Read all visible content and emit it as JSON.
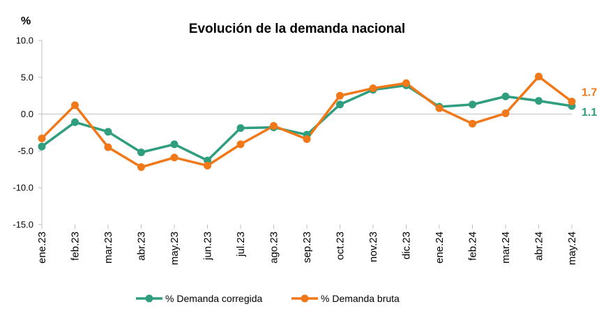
{
  "chart_data": {
    "type": "line",
    "title": "Evolución de la demanda nacional",
    "unit_label": "%",
    "categories": [
      "ene.23",
      "feb.23",
      "mar.23",
      "abr.23",
      "may.23",
      "jun.23",
      "jul.23",
      "ago.23",
      "sep.23",
      "oct.23",
      "nov.23",
      "dic.23",
      "ene.24",
      "feb.24",
      "mar.24",
      "abr.24",
      "may.24"
    ],
    "ylim": [
      -15,
      10
    ],
    "yticks": [
      -15,
      -10,
      -5,
      0,
      5,
      10
    ],
    "ytick_labels": [
      "-15.0",
      "-10.0",
      "-5.0",
      "0.0",
      "5.0",
      "10.0"
    ],
    "grid": false,
    "legend_position": "bottom",
    "series": [
      {
        "name": "% Demanda corregida",
        "color": "#2e9e7e",
        "values": [
          -4.4,
          -1.1,
          -2.4,
          -5.2,
          -4.1,
          -6.3,
          -1.9,
          -1.8,
          -2.8,
          1.3,
          3.3,
          3.9,
          1.0,
          1.3,
          2.4,
          1.8,
          1.1
        ],
        "end_label": "1.1"
      },
      {
        "name": "% Demanda bruta",
        "color": "#f07818",
        "values": [
          -3.3,
          1.2,
          -4.5,
          -7.2,
          -5.9,
          -7.0,
          -4.1,
          -1.6,
          -3.4,
          2.5,
          3.5,
          4.2,
          0.8,
          -1.3,
          0.1,
          5.1,
          1.7
        ],
        "end_label": "1.7"
      }
    ]
  }
}
